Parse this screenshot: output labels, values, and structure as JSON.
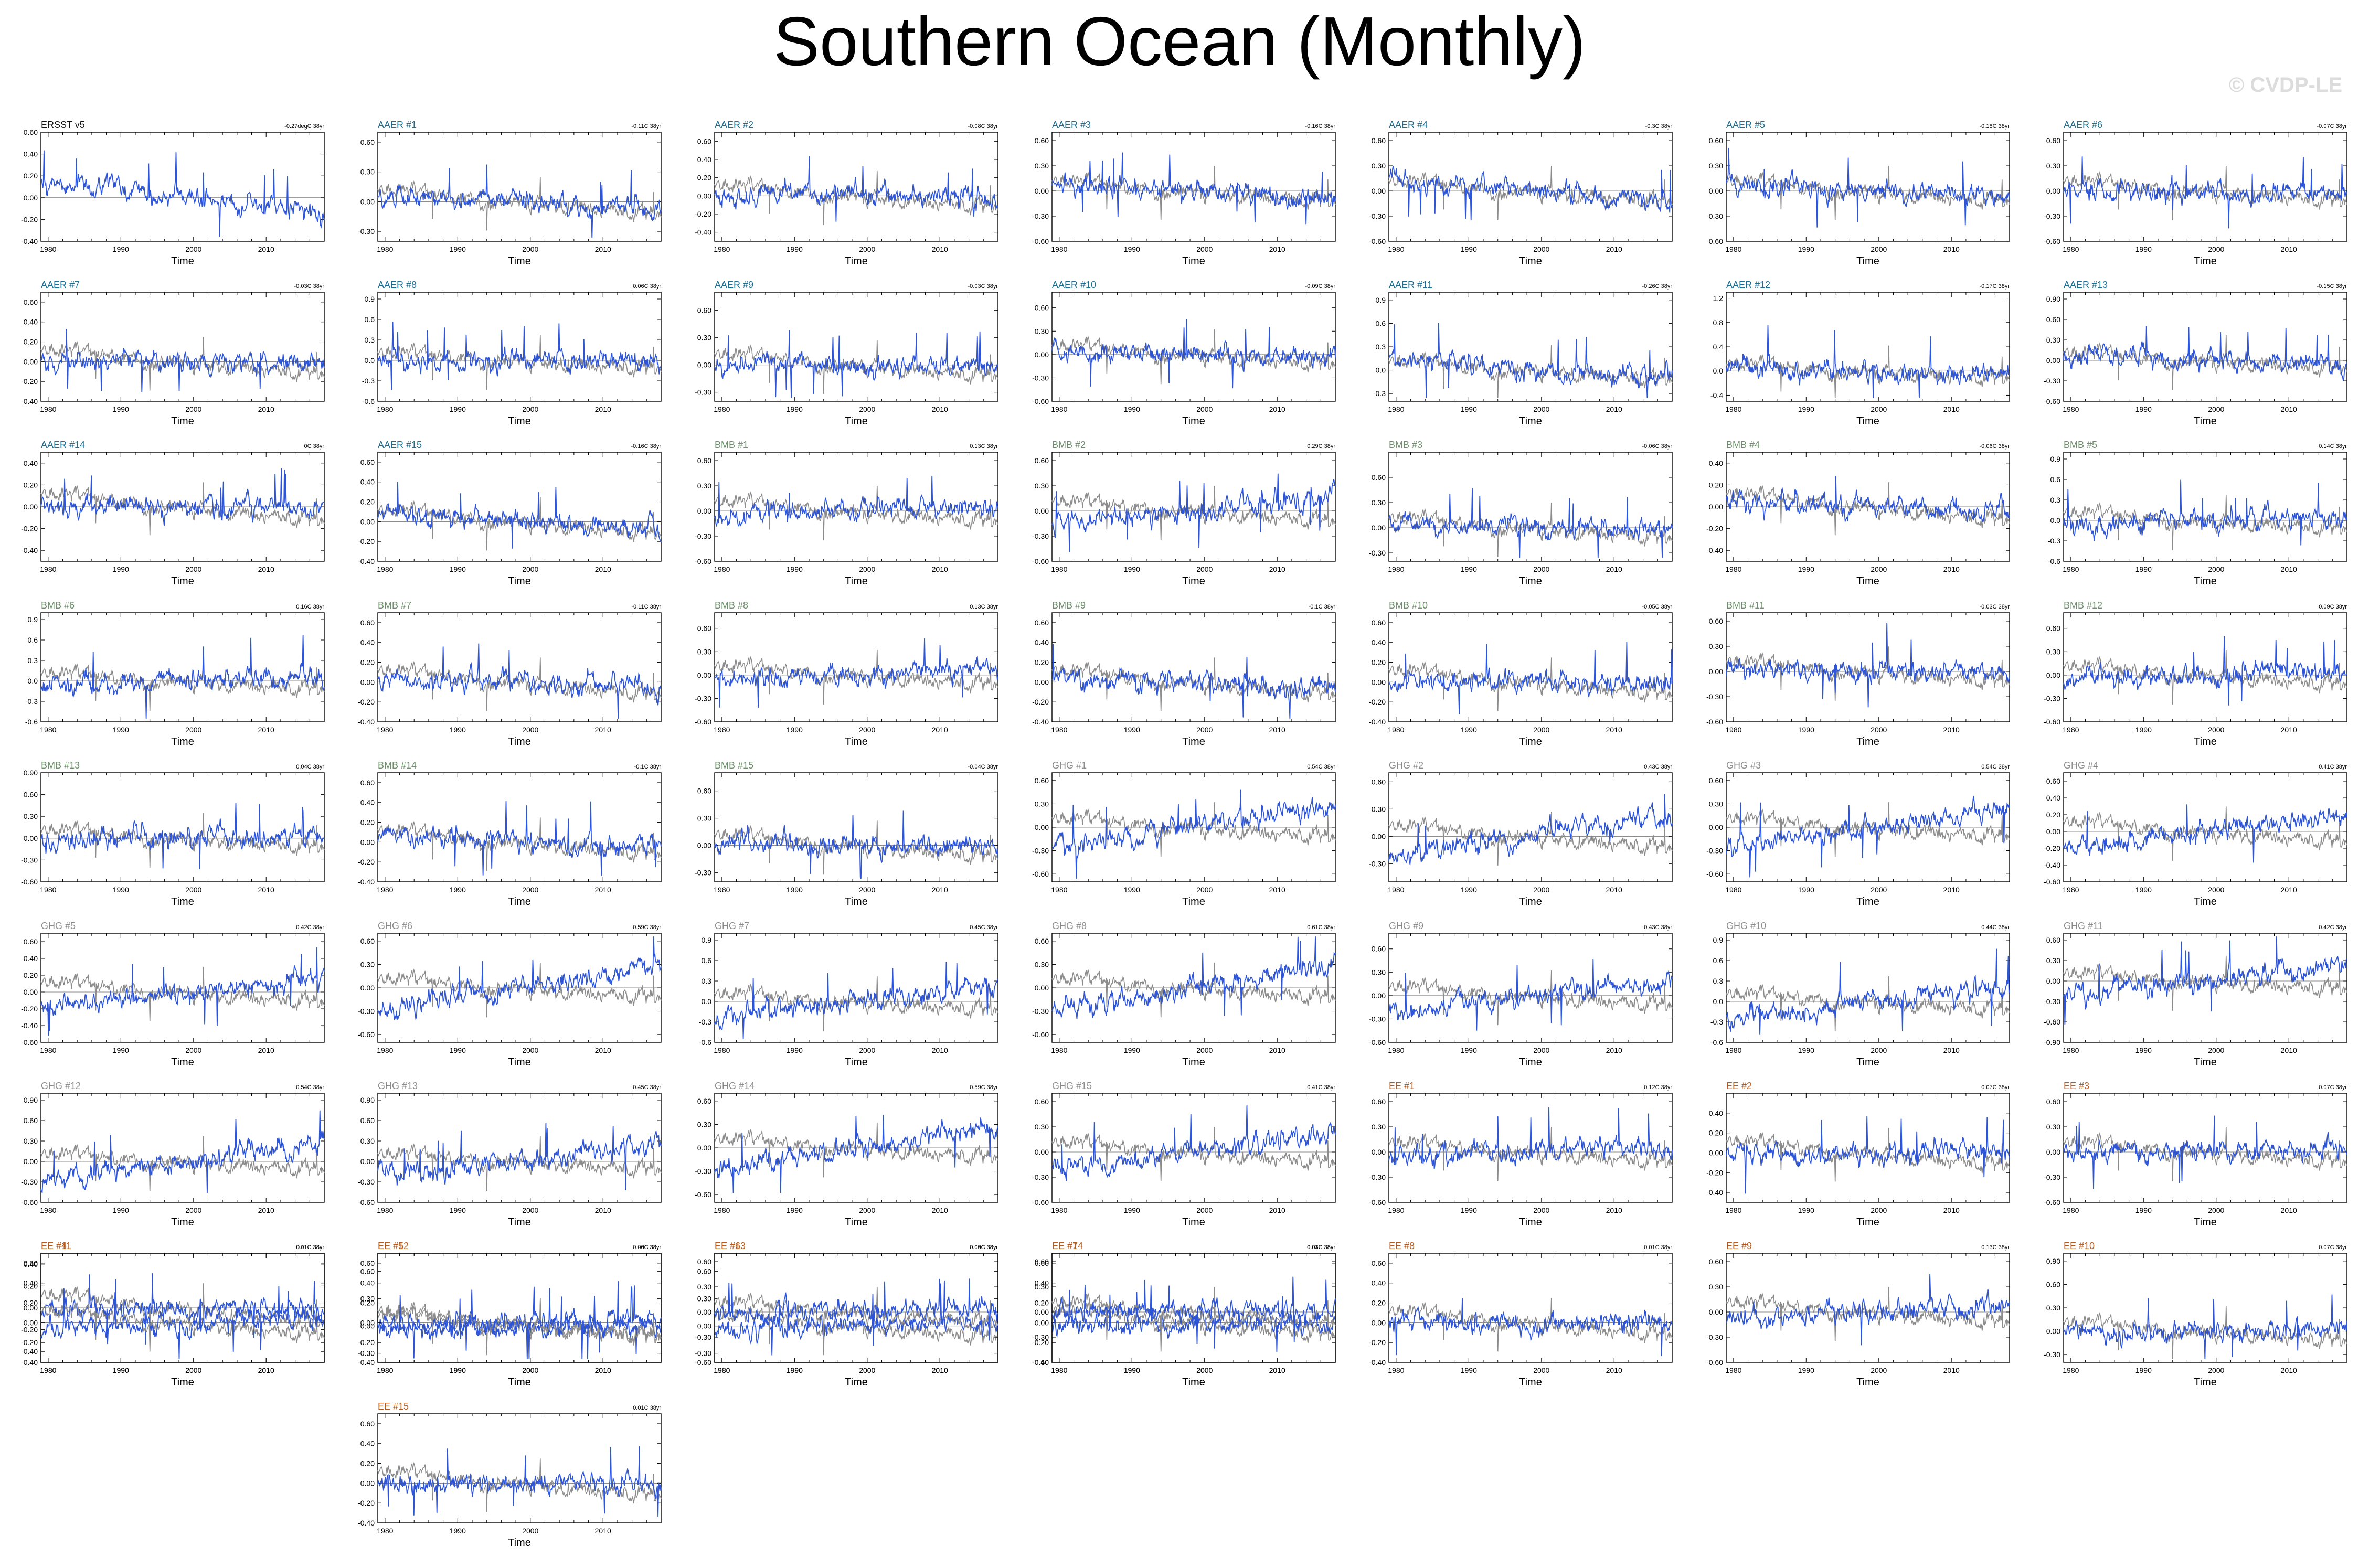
{
  "title": "Southern Ocean (Monthly)",
  "watermark": "© CVDP-LE",
  "colors": {
    "observed": "#111111",
    "model": "#2d55d6",
    "comparison": "#8c8c8c",
    "AER": "#1a6f96",
    "BMB": "#6c8f6a",
    "GHG": "#8c8c8c",
    "EE": "#b85a1b"
  },
  "chart_data": {
    "type": "line",
    "xlabel": "Time",
    "x_range": [
      1979,
      2018
    ],
    "x_ticks": [
      "1980",
      "1990",
      "2000",
      "2010"
    ],
    "panels": [
      {
        "name": "ERSST v5",
        "group": "OBS",
        "trend": "-0.27degC 38yr",
        "yticks": [
          "0.60",
          "0.40",
          "0.20",
          "0.00",
          "-0.20",
          "-0.40"
        ],
        "ylim": [
          -0.4,
          0.6
        ]
      },
      {
        "name": "AAER #1",
        "group": "AER",
        "trend": "-0.11C 38yr",
        "yticks": [
          "0.60",
          "0.30",
          "0.00",
          "-0.30"
        ],
        "ylim": [
          -0.4,
          0.7
        ]
      },
      {
        "name": "AAER #2",
        "group": "AER",
        "trend": "-0.08C 38yr",
        "yticks": [
          "0.60",
          "0.40",
          "0.20",
          "0.00",
          "-0.20",
          "-0.40"
        ],
        "ylim": [
          -0.5,
          0.7
        ]
      },
      {
        "name": "AAER #3",
        "group": "AER",
        "trend": "-0.16C 38yr",
        "yticks": [
          "0.60",
          "0.30",
          "0.00",
          "-0.30",
          "-0.60"
        ],
        "ylim": [
          -0.6,
          0.7
        ]
      },
      {
        "name": "AAER #4",
        "group": "AER",
        "trend": "-0.3C 38yr",
        "yticks": [
          "0.60",
          "0.30",
          "0.00",
          "-0.30",
          "-0.60"
        ],
        "ylim": [
          -0.6,
          0.7
        ]
      },
      {
        "name": "AAER #5",
        "group": "AER",
        "trend": "-0.18C 38yr",
        "yticks": [
          "0.60",
          "0.30",
          "0.00",
          "-0.30",
          "-0.60"
        ],
        "ylim": [
          -0.6,
          0.7
        ]
      },
      {
        "name": "AAER #6",
        "group": "AER",
        "trend": "-0.07C 38yr",
        "yticks": [
          "0.60",
          "0.30",
          "0.00",
          "-0.30",
          "-0.60"
        ],
        "ylim": [
          -0.6,
          0.7
        ]
      },
      {
        "name": "AAER #7",
        "group": "AER",
        "trend": "-0.03C 38yr",
        "yticks": [
          "0.60",
          "0.40",
          "0.20",
          "0.00",
          "-0.20",
          "-0.40"
        ],
        "ylim": [
          -0.4,
          0.7
        ]
      },
      {
        "name": "AAER #8",
        "group": "AER",
        "trend": "0.06C 38yr",
        "yticks": [
          "0.9",
          "0.6",
          "0.3",
          "0.0",
          "-0.3",
          "-0.6"
        ],
        "ylim": [
          -0.6,
          1.0
        ]
      },
      {
        "name": "AAER #9",
        "group": "AER",
        "trend": "-0.03C 38yr",
        "yticks": [
          "0.60",
          "0.30",
          "0.00",
          "-0.30"
        ],
        "ylim": [
          -0.4,
          0.8
        ]
      },
      {
        "name": "AAER #10",
        "group": "AER",
        "trend": "-0.09C 38yr",
        "yticks": [
          "0.60",
          "0.30",
          "0.00",
          "-0.30",
          "-0.60"
        ],
        "ylim": [
          -0.6,
          0.8
        ]
      },
      {
        "name": "AAER #11",
        "group": "AER",
        "trend": "-0.26C 38yr",
        "yticks": [
          "0.9",
          "0.6",
          "0.3",
          "0.0",
          "-0.3"
        ],
        "ylim": [
          -0.4,
          1.0
        ]
      },
      {
        "name": "AAER #12",
        "group": "AER",
        "trend": "-0.17C 38yr",
        "yticks": [
          "1.2",
          "0.8",
          "0.4",
          "0.0",
          "-0.4"
        ],
        "ylim": [
          -0.5,
          1.3
        ]
      },
      {
        "name": "AAER #13",
        "group": "AER",
        "trend": "-0.15C 38yr",
        "yticks": [
          "0.90",
          "0.60",
          "0.30",
          "0.00",
          "-0.30",
          "-0.60"
        ],
        "ylim": [
          -0.6,
          1.0
        ]
      },
      {
        "name": "AAER #14",
        "group": "AER",
        "trend": "0C 38yr",
        "yticks": [
          "0.40",
          "0.20",
          "0.00",
          "-0.20",
          "-0.40"
        ],
        "ylim": [
          -0.5,
          0.5
        ]
      },
      {
        "name": "AAER #15",
        "group": "AER",
        "trend": "-0.16C 38yr",
        "yticks": [
          "0.60",
          "0.40",
          "0.20",
          "0.00",
          "-0.20",
          "-0.40"
        ],
        "ylim": [
          -0.4,
          0.7
        ]
      },
      {
        "name": "BMB #1",
        "group": "BMB",
        "trend": "0.13C 38yr",
        "yticks": [
          "0.60",
          "0.30",
          "0.00",
          "-0.30",
          "-0.60"
        ],
        "ylim": [
          -0.6,
          0.7
        ]
      },
      {
        "name": "BMB #2",
        "group": "BMB",
        "trend": "0.29C 38yr",
        "yticks": [
          "0.60",
          "0.30",
          "0.00",
          "-0.30",
          "-0.60"
        ],
        "ylim": [
          -0.6,
          0.7
        ]
      },
      {
        "name": "BMB #3",
        "group": "BMB",
        "trend": "-0.06C 38yr",
        "yticks": [
          "0.60",
          "0.30",
          "0.00",
          "-0.30"
        ],
        "ylim": [
          -0.4,
          0.9
        ]
      },
      {
        "name": "BMB #4",
        "group": "BMB",
        "trend": "-0.06C 38yr",
        "yticks": [
          "0.40",
          "0.20",
          "0.00",
          "-0.20",
          "-0.40"
        ],
        "ylim": [
          -0.5,
          0.5
        ]
      },
      {
        "name": "BMB #5",
        "group": "BMB",
        "trend": "0.14C 38yr",
        "yticks": [
          "0.9",
          "0.6",
          "0.3",
          "0.0",
          "-0.3",
          "-0.6"
        ],
        "ylim": [
          -0.6,
          1.0
        ]
      },
      {
        "name": "BMB #6",
        "group": "BMB",
        "trend": "0.16C 38yr",
        "yticks": [
          "0.9",
          "0.6",
          "0.3",
          "0.0",
          "-0.3",
          "-0.6"
        ],
        "ylim": [
          -0.6,
          1.0
        ]
      },
      {
        "name": "BMB #7",
        "group": "BMB",
        "trend": "-0.11C 38yr",
        "yticks": [
          "0.60",
          "0.40",
          "0.20",
          "0.00",
          "-0.20",
          "-0.40"
        ],
        "ylim": [
          -0.4,
          0.7
        ]
      },
      {
        "name": "BMB #8",
        "group": "BMB",
        "trend": "0.13C 38yr",
        "yticks": [
          "0.60",
          "0.30",
          "0.00",
          "-0.30",
          "-0.60"
        ],
        "ylim": [
          -0.6,
          0.8
        ]
      },
      {
        "name": "BMB #9",
        "group": "BMB",
        "trend": "-0.1C 38yr",
        "yticks": [
          "0.60",
          "0.40",
          "0.20",
          "0.00",
          "-0.20",
          "-0.40"
        ],
        "ylim": [
          -0.4,
          0.7
        ]
      },
      {
        "name": "BMB #10",
        "group": "BMB",
        "trend": "-0.05C 38yr",
        "yticks": [
          "0.60",
          "0.40",
          "0.20",
          "0.00",
          "-0.20",
          "-0.40"
        ],
        "ylim": [
          -0.4,
          0.7
        ]
      },
      {
        "name": "BMB #11",
        "group": "BMB",
        "trend": "-0.03C 38yr",
        "yticks": [
          "0.60",
          "0.30",
          "0.00",
          "-0.30",
          "-0.60"
        ],
        "ylim": [
          -0.6,
          0.7
        ]
      },
      {
        "name": "BMB #12",
        "group": "BMB",
        "trend": "0.09C 38yr",
        "yticks": [
          "0.60",
          "0.30",
          "0.00",
          "-0.30",
          "-0.60"
        ],
        "ylim": [
          -0.6,
          0.8
        ]
      },
      {
        "name": "BMB #13",
        "group": "BMB",
        "trend": "0.04C 38yr",
        "yticks": [
          "0.90",
          "0.60",
          "0.30",
          "0.00",
          "-0.30",
          "-0.60"
        ],
        "ylim": [
          -0.6,
          0.9
        ]
      },
      {
        "name": "BMB #14",
        "group": "BMB",
        "trend": "-0.1C 38yr",
        "yticks": [
          "0.60",
          "0.40",
          "0.20",
          "0.00",
          "-0.20",
          "-0.40"
        ],
        "ylim": [
          -0.4,
          0.7
        ]
      },
      {
        "name": "BMB #15",
        "group": "BMB",
        "trend": "-0.04C 38yr",
        "yticks": [
          "0.60",
          "0.30",
          "0.00",
          "-0.30"
        ],
        "ylim": [
          -0.4,
          0.8
        ]
      },
      {
        "name": "GHG #1",
        "group": "GHG",
        "trend": "0.54C 38yr",
        "yticks": [
          "0.60",
          "0.30",
          "0.00",
          "-0.30",
          "-0.60"
        ],
        "ylim": [
          -0.7,
          0.7
        ]
      },
      {
        "name": "GHG #2",
        "group": "GHG",
        "trend": "0.43C 38yr",
        "yticks": [
          "0.60",
          "0.30",
          "0.00",
          "-0.30"
        ],
        "ylim": [
          -0.5,
          0.7
        ]
      },
      {
        "name": "GHG #3",
        "group": "GHG",
        "trend": "0.54C 38yr",
        "yticks": [
          "0.60",
          "0.30",
          "0.00",
          "-0.30",
          "-0.60"
        ],
        "ylim": [
          -0.7,
          0.7
        ]
      },
      {
        "name": "GHG #4",
        "group": "GHG",
        "trend": "0.41C 38yr",
        "yticks": [
          "0.60",
          "0.40",
          "0.20",
          "0.00",
          "-0.20",
          "-0.40",
          "-0.60"
        ],
        "ylim": [
          -0.6,
          0.7
        ]
      },
      {
        "name": "GHG #5",
        "group": "GHG",
        "trend": "0.42C 38yr",
        "yticks": [
          "0.60",
          "0.40",
          "0.20",
          "0.00",
          "-0.20",
          "-0.40",
          "-0.60"
        ],
        "ylim": [
          -0.6,
          0.7
        ]
      },
      {
        "name": "GHG #6",
        "group": "GHG",
        "trend": "0.59C 38yr",
        "yticks": [
          "0.60",
          "0.30",
          "0.00",
          "-0.30",
          "-0.60"
        ],
        "ylim": [
          -0.7,
          0.7
        ]
      },
      {
        "name": "GHG #7",
        "group": "GHG",
        "trend": "0.45C 38yr",
        "yticks": [
          "0.9",
          "0.6",
          "0.3",
          "0.0",
          "-0.3",
          "-0.6"
        ],
        "ylim": [
          -0.6,
          1.0
        ]
      },
      {
        "name": "GHG #8",
        "group": "GHG",
        "trend": "0.61C 38yr",
        "yticks": [
          "0.60",
          "0.30",
          "0.00",
          "-0.30",
          "-0.60"
        ],
        "ylim": [
          -0.7,
          0.7
        ]
      },
      {
        "name": "GHG #9",
        "group": "GHG",
        "trend": "0.43C 38yr",
        "yticks": [
          "0.60",
          "0.30",
          "0.00",
          "-0.30",
          "-0.60"
        ],
        "ylim": [
          -0.6,
          0.8
        ]
      },
      {
        "name": "GHG #10",
        "group": "GHG",
        "trend": "0.44C 38yr",
        "yticks": [
          "0.9",
          "0.6",
          "0.3",
          "0.0",
          "-0.3",
          "-0.6"
        ],
        "ylim": [
          -0.6,
          1.0
        ]
      },
      {
        "name": "GHG #11",
        "group": "GHG",
        "trend": "0.42C 38yr",
        "yticks": [
          "0.60",
          "0.30",
          "0.00",
          "-0.30",
          "-0.60",
          "-0.90"
        ],
        "ylim": [
          -0.9,
          0.7
        ]
      },
      {
        "name": "GHG #12",
        "group": "GHG",
        "trend": "0.54C 38yr",
        "yticks": [
          "0.90",
          "0.60",
          "0.30",
          "0.00",
          "-0.30",
          "-0.60"
        ],
        "ylim": [
          -0.6,
          1.0
        ]
      },
      {
        "name": "GHG #13",
        "group": "GHG",
        "trend": "0.45C 38yr",
        "yticks": [
          "0.90",
          "0.60",
          "0.30",
          "0.00",
          "-0.30",
          "-0.60"
        ],
        "ylim": [
          -0.6,
          1.0
        ]
      },
      {
        "name": "GHG #14",
        "group": "GHG",
        "trend": "0.59C 38yr",
        "yticks": [
          "0.60",
          "0.30",
          "0.00",
          "-0.30",
          "-0.60"
        ],
        "ylim": [
          -0.7,
          0.7
        ]
      },
      {
        "name": "GHG #15",
        "group": "GHG",
        "trend": "0.41C 38yr",
        "yticks": [
          "0.60",
          "0.30",
          "0.00",
          "-0.30",
          "-0.60"
        ],
        "ylim": [
          -0.6,
          0.7
        ]
      },
      {
        "name": "EE #1",
        "group": "EE",
        "trend": "0.12C 38yr",
        "yticks": [
          "0.60",
          "0.30",
          "0.00",
          "-0.30",
          "-0.60"
        ],
        "ylim": [
          -0.6,
          0.7
        ]
      },
      {
        "name": "EE #2",
        "group": "EE",
        "trend": "0.07C 38yr",
        "yticks": [
          "0.40",
          "0.20",
          "0.00",
          "-0.20",
          "-0.40"
        ],
        "ylim": [
          -0.5,
          0.6
        ]
      },
      {
        "name": "EE #3",
        "group": "EE",
        "trend": "0.07C 38yr",
        "yticks": [
          "0.60",
          "0.30",
          "0.00",
          "-0.30",
          "-0.60"
        ],
        "ylim": [
          -0.6,
          0.7
        ]
      },
      {
        "name": "EE #4",
        "group": "EE",
        "trend": "0.01C 38yr",
        "yticks": [
          "0.40",
          "0.20",
          "0.00",
          "-0.20",
          "-0.40"
        ],
        "ylim": [
          -0.5,
          0.5
        ]
      },
      {
        "name": "EE #5",
        "group": "EE",
        "trend": "-0C 38yr",
        "yticks": [
          "0.60",
          "0.30",
          "0.00",
          "-0.30"
        ],
        "ylim": [
          -0.4,
          0.8
        ]
      },
      {
        "name": "EE #6",
        "group": "EE",
        "trend": "0.06C 38yr",
        "yticks": [
          "0.60",
          "0.30",
          "0.00",
          "-0.30"
        ],
        "ylim": [
          -0.4,
          0.8
        ]
      },
      {
        "name": "EE #7",
        "group": "EE",
        "trend": "0.03C 38yr",
        "yticks": [
          "0.60",
          "0.40",
          "0.20",
          "0.00",
          "-0.20",
          "-0.40"
        ],
        "ylim": [
          -0.4,
          0.7
        ]
      },
      {
        "name": "EE #8",
        "group": "EE",
        "trend": "0.01C 38yr",
        "yticks": [
          "0.60",
          "0.40",
          "0.20",
          "0.00",
          "-0.20",
          "-0.40"
        ],
        "ylim": [
          -0.4,
          0.7
        ]
      },
      {
        "name": "EE #9",
        "group": "EE",
        "trend": "0.13C 38yr",
        "yticks": [
          "0.60",
          "0.30",
          "0.00",
          "-0.30",
          "-0.60"
        ],
        "ylim": [
          -0.6,
          0.7
        ]
      },
      {
        "name": "EE #10",
        "group": "EE",
        "trend": "0.07C 38yr",
        "yticks": [
          "0.90",
          "0.60",
          "0.30",
          "0.00",
          "-0.30"
        ],
        "ylim": [
          -0.4,
          1.0
        ]
      },
      {
        "name": "EE #11",
        "group": "EE",
        "trend": "0.11C 38yr",
        "yticks": [
          "0.60",
          "0.40",
          "0.20",
          "0.00",
          "-0.20",
          "-0.40"
        ],
        "ylim": [
          -0.4,
          0.7
        ]
      },
      {
        "name": "EE #12",
        "group": "EE",
        "trend": "0.06C 38yr",
        "yticks": [
          "0.60",
          "0.40",
          "0.20",
          "0.00",
          "-0.20",
          "-0.40"
        ],
        "ylim": [
          -0.4,
          0.7
        ]
      },
      {
        "name": "EE #13",
        "group": "EE",
        "trend": "0.09C 38yr",
        "yticks": [
          "0.60",
          "0.30",
          "0.00",
          "-0.30",
          "-0.60"
        ],
        "ylim": [
          -0.6,
          0.7
        ]
      },
      {
        "name": "EE #14",
        "group": "EE",
        "trend": "0.01C 38yr",
        "yticks": [
          "0.60",
          "0.30",
          "0.00",
          "-0.30",
          "-0.60"
        ],
        "ylim": [
          -0.6,
          0.7
        ]
      },
      {
        "name": "EE #15",
        "group": "EE",
        "trend": "0.01C 38yr",
        "yticks": [
          "0.60",
          "0.40",
          "0.20",
          "0.00",
          "-0.20",
          "-0.40"
        ],
        "ylim": [
          -0.4,
          0.7
        ]
      }
    ]
  }
}
